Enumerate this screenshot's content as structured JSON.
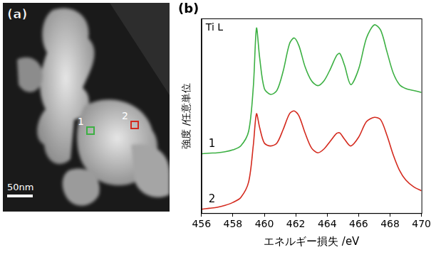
{
  "panel_a": {
    "label": "(a)",
    "scale_bar": "50nm",
    "markers": [
      {
        "label": "1",
        "color": "#3cb043"
      },
      {
        "label": "2",
        "color": "#d42a1e"
      }
    ]
  },
  "chart_data": {
    "type": "line",
    "panel_label": "(b)",
    "annotation": "Ti L",
    "x_label": "エネルギー損失 /eV",
    "y_label": "強度 /任意単位",
    "x": [
      456,
      456.5,
      457,
      457.5,
      458,
      458.5,
      459,
      459.3,
      459.5,
      459.7,
      460,
      460.4,
      460.8,
      461.2,
      461.6,
      461.9,
      462.2,
      462.6,
      463,
      463.4,
      463.8,
      464.2,
      464.6,
      464.8,
      465.1,
      465.5,
      466,
      466.5,
      467,
      467.4,
      467.8,
      468.2,
      468.6,
      469,
      469.5,
      470
    ],
    "series": [
      {
        "name": "1",
        "color": "#3cb043",
        "values": [
          3.05,
          3.08,
          3.1,
          3.15,
          3.25,
          3.45,
          4.2,
          6.5,
          9.5,
          8.0,
          6.4,
          6.1,
          6.3,
          7.3,
          8.7,
          9.0,
          8.6,
          7.5,
          6.8,
          6.55,
          6.8,
          7.4,
          8.1,
          8.2,
          7.6,
          6.6,
          7.4,
          9.0,
          9.67,
          9.4,
          8.3,
          7.2,
          6.6,
          6.4,
          6.3,
          6.2
        ]
      },
      {
        "name": "2",
        "color": "#d42a1e",
        "values": [
          0.2,
          0.25,
          0.3,
          0.4,
          0.55,
          0.8,
          1.6,
          3.5,
          5.1,
          4.4,
          3.6,
          3.45,
          3.6,
          4.3,
          5.1,
          5.25,
          5.0,
          4.1,
          3.35,
          3.1,
          3.3,
          3.7,
          4.1,
          4.12,
          3.8,
          3.45,
          3.9,
          4.7,
          4.92,
          4.8,
          4.0,
          3.0,
          2.2,
          1.7,
          1.35,
          1.15
        ]
      }
    ],
    "xlim": [
      456,
      470
    ],
    "xticks": [
      456,
      458,
      460,
      462,
      464,
      466,
      468,
      470
    ],
    "ylim": [
      0,
      10
    ],
    "tick_labels": "x",
    "grid": false
  }
}
